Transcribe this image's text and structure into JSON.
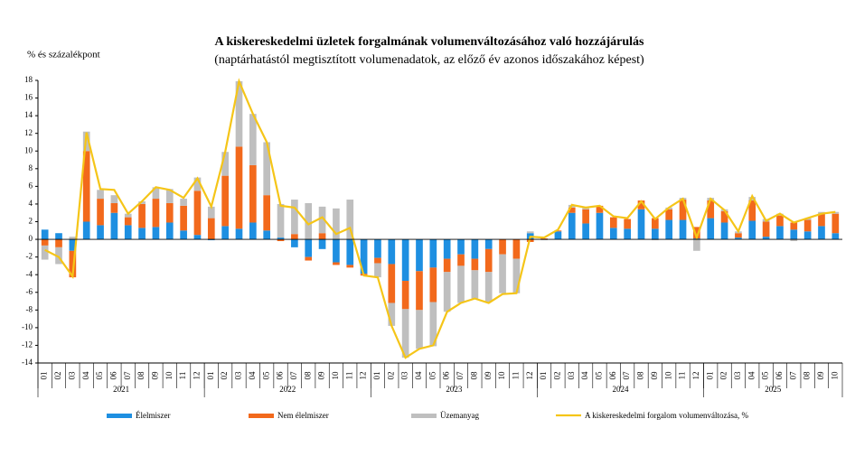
{
  "chart_data": {
    "type": "bar",
    "title": "A kiskereskedelmi üzletek forgalmának volumenváltozásához való hozzájárulás",
    "subtitle": "(naptárhatástól megtisztított volumenadatok, az előző év azonos időszakához képest)",
    "y_label": "% és százalékpont",
    "categories": [
      "01",
      "02",
      "03",
      "04",
      "05",
      "06",
      "07",
      "08",
      "09",
      "10",
      "11",
      "12",
      "01",
      "02",
      "03",
      "04",
      "05",
      "06",
      "07",
      "08",
      "09",
      "10",
      "11",
      "12",
      "01",
      "02",
      "03",
      "04",
      "05",
      "06",
      "07",
      "08",
      "09",
      "10",
      "11",
      "12",
      "01",
      "02",
      "03",
      "04",
      "05",
      "06",
      "07",
      "08",
      "09",
      "10",
      "11",
      "12",
      "01",
      "02",
      "03",
      "04",
      "05",
      "06",
      "07",
      "08",
      "09",
      "10"
    ],
    "year_labels": [
      "2021",
      "2022",
      "2023",
      "2024",
      "2025"
    ],
    "ylim": [
      -14,
      18
    ],
    "yticks": [
      -14,
      -12,
      -10,
      -8,
      -6,
      -4,
      -2,
      0,
      2,
      4,
      6,
      8,
      10,
      12,
      14,
      16,
      18
    ],
    "stacked": true,
    "series": [
      {
        "name": "Élelmiszer",
        "type": "bar",
        "color": "#1e8fe1",
        "values": [
          1.1,
          0.7,
          -1.3,
          2.0,
          1.6,
          3.0,
          1.6,
          1.3,
          1.4,
          1.9,
          1.0,
          0.5,
          -0.1,
          1.5,
          1.2,
          1.9,
          1.0,
          0.2,
          -0.9,
          -2.0,
          -1.1,
          -2.6,
          -2.9,
          -3.9,
          -2.1,
          -2.8,
          -4.7,
          -3.6,
          -3.2,
          -2.2,
          -1.7,
          -2.2,
          -1.1,
          0,
          0,
          0.7,
          0,
          0.9,
          3.0,
          1.8,
          3.0,
          1.3,
          1.2,
          3.4,
          1.2,
          2.2,
          2.2,
          0.1,
          2.4,
          1.9,
          0.2,
          2.1,
          0.3,
          1.5,
          1.1,
          0.9,
          1.5,
          0.7
        ]
      },
      {
        "name": "Nem élelmiszer",
        "type": "bar",
        "color": "#f2691c",
        "values": [
          -0.7,
          -0.9,
          -3.0,
          8.0,
          3.0,
          1.1,
          0.9,
          2.7,
          3.2,
          2.2,
          2.8,
          5.0,
          2.4,
          5.7,
          9.3,
          6.5,
          4.0,
          -0.2,
          0.6,
          -0.4,
          0.7,
          -0.3,
          -0.3,
          -0.2,
          -0.6,
          -4.4,
          -3.2,
          -4.4,
          -3.9,
          -1.5,
          -1.3,
          -1.3,
          -2.6,
          -1.7,
          -2.2,
          -0.3,
          0.1,
          0.1,
          0.6,
          1.6,
          0.8,
          1.2,
          1.1,
          1.0,
          1.2,
          1.2,
          2.3,
          1.3,
          2.0,
          1.3,
          0.5,
          2.3,
          1.7,
          1.2,
          0.8,
          1.3,
          1.4,
          2.2
        ]
      },
      {
        "name": "Üzemanyag",
        "type": "bar",
        "color": "#bfbfbf",
        "values": [
          -1.6,
          -1.9,
          0.3,
          2.2,
          1.0,
          0.9,
          0.4,
          0.3,
          1.3,
          1.6,
          0.8,
          1.5,
          1.3,
          2.7,
          7.4,
          5.8,
          6.0,
          3.8,
          3.9,
          4.1,
          3.0,
          3.5,
          4.5,
          0,
          -1.6,
          -2.6,
          -5.5,
          -4.4,
          -5.0,
          -4.5,
          -4.2,
          -3.2,
          -3.4,
          -4.4,
          -3.9,
          0.2,
          -0.1,
          0,
          0.3,
          0.3,
          0,
          0,
          0,
          0,
          -0.1,
          0.2,
          0.2,
          -1.3,
          0.3,
          0.2,
          0.2,
          0.4,
          0.3,
          0.2,
          -0.2,
          0.2,
          0.2,
          0.2
        ]
      },
      {
        "name": "A kiskereskedelmi forgalom volumenváltozása, %",
        "type": "line",
        "color": "#f5c518",
        "values": [
          -1.2,
          -2.0,
          -4.2,
          12.1,
          5.7,
          5.6,
          2.9,
          4.3,
          5.9,
          5.6,
          4.7,
          6.9,
          3.7,
          9.9,
          17.9,
          14.2,
          11.0,
          3.8,
          3.6,
          1.7,
          2.5,
          0.6,
          1.3,
          -4.1,
          -4.3,
          -9.8,
          -13.4,
          -12.4,
          -12.0,
          -8.2,
          -7.2,
          -6.7,
          -7.2,
          -6.2,
          -6.1,
          0.3,
          0.2,
          1.1,
          3.9,
          3.6,
          3.8,
          2.6,
          2.4,
          4.3,
          2.3,
          3.6,
          4.6,
          0.2,
          4.6,
          3.3,
          0.9,
          4.9,
          2.1,
          2.9,
          1.9,
          2.4,
          2.9,
          3.1
        ]
      }
    ]
  }
}
